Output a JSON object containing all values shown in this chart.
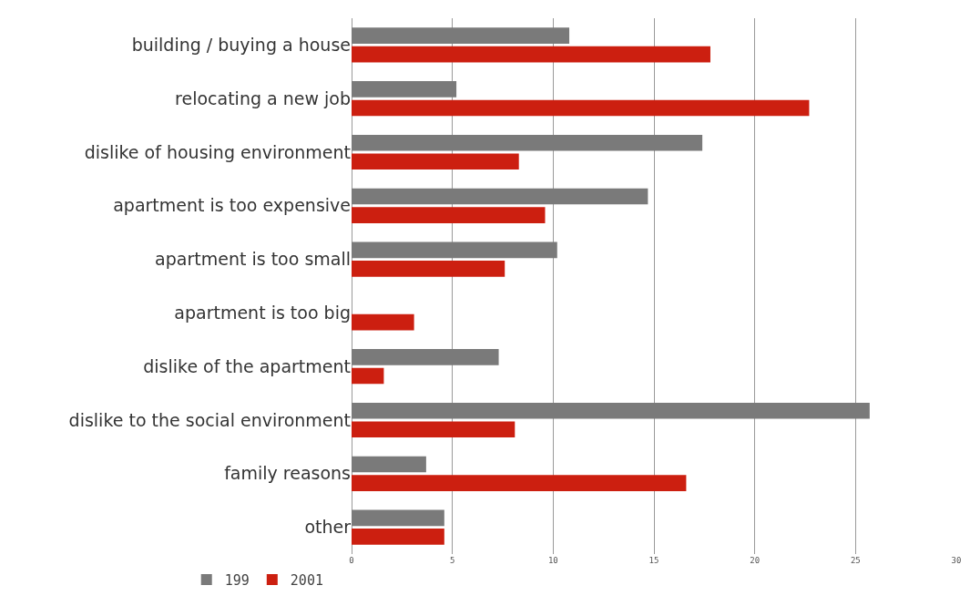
{
  "chart_data": {
    "type": "bar",
    "orientation": "horizontal",
    "categories": [
      "building / buying a house",
      "relocating a new job",
      "dislike of housing environment",
      "apartment is too expensive",
      "apartment is too small",
      "apartment is too big",
      "dislike of the apartment",
      "dislike to the social environment",
      "family reasons",
      "other"
    ],
    "series": [
      {
        "name": "199",
        "color": "#7a7a7a",
        "values": [
          10.8,
          5.2,
          17.4,
          14.7,
          10.2,
          null,
          7.3,
          25.7,
          3.7,
          4.6
        ]
      },
      {
        "name": "2001",
        "color": "#cc1f10",
        "values": [
          17.8,
          22.7,
          8.3,
          9.6,
          7.6,
          3.1,
          1.6,
          8.1,
          16.6,
          4.6
        ]
      }
    ],
    "xlim": [
      0,
      30
    ],
    "xticks": [
      0,
      5,
      10,
      15,
      20,
      25,
      30
    ],
    "grid": "x",
    "legend": "bottom left"
  }
}
